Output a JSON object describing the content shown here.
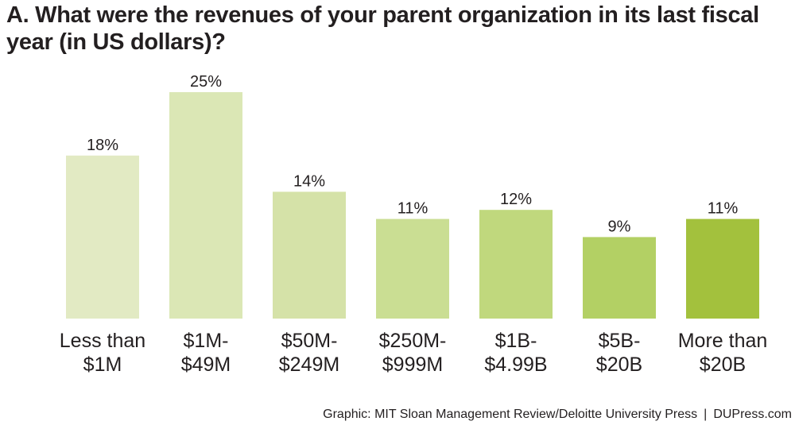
{
  "title": "A. What were the revenues of your parent organization in its last fiscal year (in US dollars)?",
  "chart_data": {
    "type": "bar",
    "categories": [
      [
        "Less than",
        "$1M"
      ],
      [
        "$1M-",
        "$49M"
      ],
      [
        "$50M-",
        "$249M"
      ],
      [
        "$250M-",
        "$999M"
      ],
      [
        "$1B-",
        "$4.99B"
      ],
      [
        "$5B-",
        "$20B"
      ],
      [
        "More than",
        "$20B"
      ]
    ],
    "values": [
      18,
      25,
      14,
      11,
      12,
      9,
      11
    ],
    "value_suffix": "%",
    "colors": [
      "#e2eac3",
      "#dbe7b5",
      "#d5e2a8",
      "#cade93",
      "#c0d87d",
      "#b3d064",
      "#a3c13d"
    ],
    "ylim": [
      0,
      25
    ],
    "grid": false,
    "legend": "none"
  },
  "credit": {
    "source": "Graphic: MIT Sloan Management Review/Deloitte University Press",
    "separator": "|",
    "site": "DUPress.com"
  }
}
